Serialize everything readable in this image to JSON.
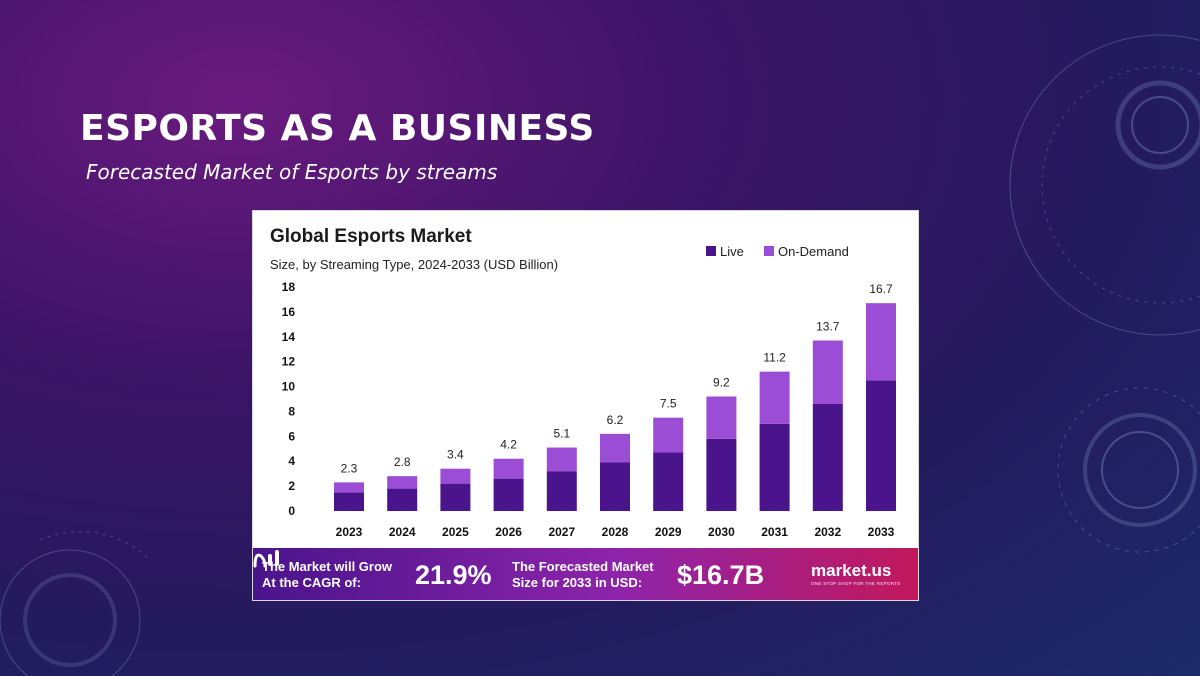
{
  "slide": {
    "title": "ESPORTS AS A BUSINESS",
    "subtitle": "Forecasted Market of Esports by streams"
  },
  "chart_data": {
    "type": "bar",
    "stacked": true,
    "title": "Global Esports Market",
    "subtitle": "Size, by Streaming Type, 2024-2033 (USD Billion)",
    "categories": [
      "2023",
      "2024",
      "2025",
      "2026",
      "2027",
      "2028",
      "2029",
      "2030",
      "2031",
      "2032",
      "2033"
    ],
    "series": [
      {
        "name": "Live",
        "color": "#4a148c",
        "values": [
          1.5,
          1.8,
          2.2,
          2.6,
          3.2,
          3.9,
          4.7,
          5.8,
          7.0,
          8.6,
          10.5
        ]
      },
      {
        "name": "On-Demand",
        "color": "#9b4dd6",
        "values": [
          0.8,
          1.0,
          1.2,
          1.6,
          1.9,
          2.3,
          2.8,
          3.4,
          4.2,
          5.1,
          6.2
        ]
      }
    ],
    "totals_labels": [
      "2.3",
      "2.8",
      "3.4",
      "4.2",
      "5.1",
      "6.2",
      "7.5",
      "9.2",
      "11.2",
      "13.7",
      "16.7"
    ],
    "ylim": [
      0,
      18
    ],
    "yticks": [
      "0",
      "2",
      "4",
      "6",
      "8",
      "10",
      "12",
      "14",
      "16",
      "18"
    ],
    "grid": false,
    "legend_position": "top-right"
  },
  "banner": {
    "cagr_label_line1": "The Market will Grow",
    "cagr_label_line2": "At the CAGR of:",
    "cagr_value": "21.9%",
    "size_label_line1": "The Forecasted Market",
    "size_label_line2": "Size for 2033 in USD:",
    "size_value": "$16.7B",
    "brand": "market.us",
    "brand_tagline": "ONE STOP SHOP FOR THE REPORTS"
  }
}
